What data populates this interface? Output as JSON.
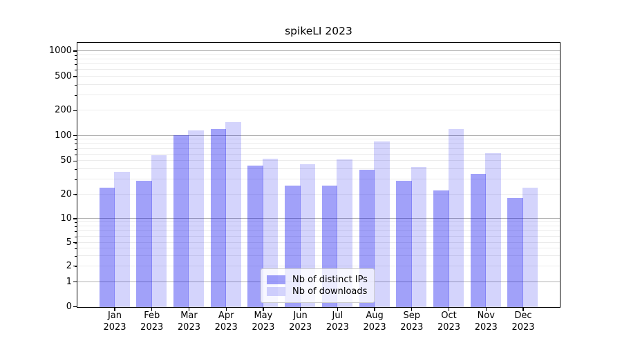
{
  "chart_data": {
    "type": "bar",
    "title": "spikeLI 2023",
    "categories": [
      "Jan",
      "Feb",
      "Mar",
      "Apr",
      "May",
      "Jun",
      "Jul",
      "Aug",
      "Sep",
      "Oct",
      "Nov",
      "Dec"
    ],
    "x_year": "2023",
    "series": [
      {
        "name": "Nb of distinct IPs",
        "color": "#0000EE5E",
        "values": [
          24,
          29,
          100,
          120,
          44,
          25,
          25,
          39,
          29,
          22,
          35,
          18
        ]
      },
      {
        "name": "Nb of downloads",
        "color": "#0000EE2B",
        "values": [
          37,
          58,
          115,
          145,
          53,
          45,
          52,
          85,
          42,
          120,
          61,
          24
        ]
      }
    ],
    "y_axis": {
      "scale": "symlog",
      "tick_labels": [
        "1000",
        "500",
        "200",
        "100",
        "50",
        "20",
        "10",
        "5",
        "2",
        "1",
        "0"
      ],
      "tick_values": [
        1000,
        500,
        200,
        100,
        50,
        20,
        10,
        5,
        2,
        1,
        0
      ],
      "range_top": 1000,
      "range_bottom": 0
    },
    "grid": {
      "major_color": "#b0b0b0",
      "minor_color": "#ebebeb",
      "shown": true
    },
    "legend_position": "bottom-center"
  }
}
